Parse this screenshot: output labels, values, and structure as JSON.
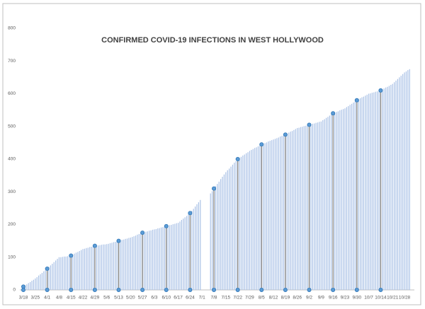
{
  "chart_data": {
    "type": "bar",
    "title": "CONFIRMED COVID-19 INFECTIONS IN WEST HOLLYWOOD",
    "categories": [
      "3/18",
      null,
      null,
      null,
      null,
      null,
      null,
      "3/25",
      null,
      null,
      null,
      null,
      null,
      null,
      "4/1",
      null,
      null,
      null,
      null,
      null,
      null,
      "4/8",
      null,
      null,
      null,
      null,
      null,
      null,
      "4/15",
      null,
      null,
      null,
      null,
      null,
      null,
      "4/22",
      null,
      null,
      null,
      null,
      null,
      null,
      "4/29",
      null,
      null,
      null,
      null,
      null,
      null,
      "5/6",
      null,
      null,
      null,
      null,
      null,
      null,
      "5/13",
      null,
      null,
      null,
      null,
      null,
      null,
      "5/20",
      null,
      null,
      null,
      null,
      null,
      null,
      "5/27",
      null,
      null,
      null,
      null,
      null,
      null,
      "6/3",
      null,
      null,
      null,
      null,
      null,
      null,
      "6/10",
      null,
      null,
      null,
      null,
      null,
      null,
      "6/17",
      null,
      null,
      null,
      null,
      null,
      null,
      "6/24",
      null,
      null,
      null,
      null,
      null,
      null,
      "7/1",
      null,
      null,
      null,
      null,
      null,
      null,
      "7/8",
      null,
      null,
      null,
      null,
      null,
      null,
      "7/15",
      null,
      null,
      null,
      null,
      null,
      null,
      "7/22",
      null,
      null,
      null,
      null,
      null,
      null,
      "7/29",
      null,
      null,
      null,
      null,
      null,
      null,
      "8/5",
      null,
      null,
      null,
      null,
      null,
      null,
      "8/12",
      null,
      null,
      null,
      null,
      null,
      null,
      "8/19",
      null,
      null,
      null,
      null,
      null,
      null,
      "8/26",
      null,
      null,
      null,
      null,
      null,
      null,
      "9/2",
      null,
      null,
      null,
      null,
      null,
      null,
      "9/9",
      null,
      null,
      null,
      null,
      null,
      null,
      "9/16",
      null,
      null,
      null,
      null,
      null,
      null,
      "9/23",
      null,
      null,
      null,
      null,
      null,
      null,
      "9/30",
      null,
      null,
      null,
      null,
      null,
      null,
      "10/7",
      null,
      null,
      null,
      null,
      null,
      null,
      "10/14",
      null,
      null,
      null,
      null,
      null,
      null,
      "10/21",
      null,
      null,
      null,
      null,
      null,
      null,
      "10/28",
      null,
      null,
      null
    ],
    "values": [
      10,
      14,
      17,
      21,
      24,
      28,
      31,
      35,
      39,
      44,
      48,
      52,
      57,
      61,
      65,
      70,
      75,
      80,
      85,
      90,
      95,
      100,
      100,
      101,
      102,
      102,
      103,
      104,
      105,
      108,
      111,
      114,
      116,
      119,
      122,
      125,
      126,
      128,
      129,
      131,
      132,
      134,
      135,
      136,
      136,
      137,
      138,
      139,
      139,
      140,
      141,
      143,
      144,
      146,
      147,
      149,
      150,
      151,
      153,
      154,
      156,
      157,
      159,
      160,
      162,
      164,
      166,
      169,
      171,
      173,
      175,
      176,
      178,
      179,
      181,
      182,
      184,
      185,
      186,
      188,
      189,
      191,
      192,
      194,
      195,
      196,
      198,
      199,
      201,
      202,
      204,
      205,
      209,
      214,
      218,
      222,
      226,
      231,
      235,
      242,
      248,
      255,
      262,
      268,
      275,
      null,
      null,
      null,
      null,
      null,
      295,
      302,
      310,
      317,
      324,
      331,
      339,
      346,
      353,
      360,
      366,
      371,
      377,
      383,
      389,
      394,
      400,
      404,
      407,
      411,
      414,
      418,
      421,
      425,
      428,
      431,
      434,
      436,
      439,
      442,
      445,
      447,
      449,
      451,
      454,
      456,
      458,
      460,
      462,
      464,
      466,
      469,
      471,
      473,
      475,
      478,
      481,
      484,
      486,
      489,
      492,
      495,
      496,
      498,
      499,
      501,
      502,
      504,
      505,
      506,
      508,
      509,
      511,
      512,
      514,
      515,
      519,
      522,
      526,
      529,
      533,
      536,
      540,
      542,
      544,
      546,
      549,
      551,
      553,
      555,
      559,
      562,
      566,
      569,
      573,
      576,
      580,
      583,
      586,
      589,
      591,
      594,
      597,
      600,
      601,
      603,
      604,
      606,
      607,
      609,
      610,
      613,
      616,
      619,
      621,
      624,
      627,
      630,
      635,
      640,
      645,
      650,
      655,
      660,
      665,
      668,
      672,
      675
    ],
    "color": "#a9c1e6",
    "ylim": [
      0,
      800
    ],
    "yticks": [
      0,
      100,
      200,
      300,
      400,
      500,
      600,
      700,
      800
    ],
    "grid": false
  }
}
